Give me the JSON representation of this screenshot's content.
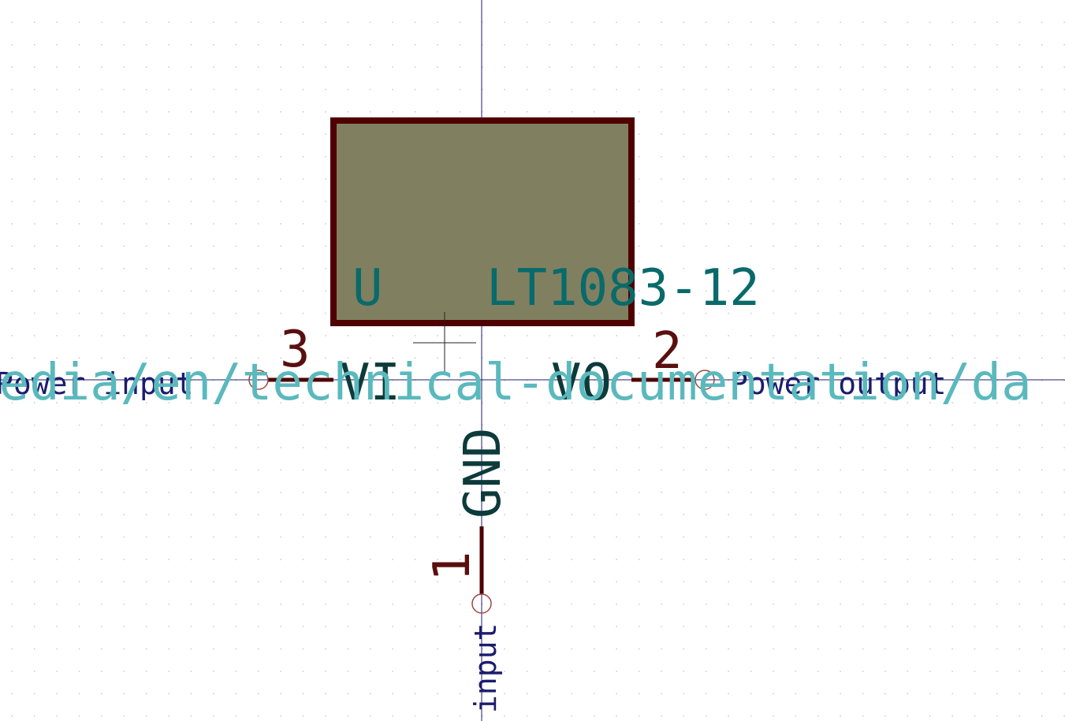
{
  "symbol": {
    "reference": "U",
    "value": "LT1083-12",
    "datasheet_fragment": "media/en/technical-documentation/da"
  },
  "pins": [
    {
      "number": "3",
      "name": "VI",
      "type": "Power input"
    },
    {
      "number": "2",
      "name": "VO",
      "type": "Power output"
    },
    {
      "number": "1",
      "name": "GND",
      "type": "Power input"
    }
  ],
  "gnd_pin_type_visible": "input",
  "colors": {
    "background": "#ffffff",
    "body_fill": "#808060",
    "body_outline": "#4f0000",
    "pin_line": "#4f0000",
    "pin_number": "#5a0f0f",
    "pin_name": "#0d3a3a",
    "field_text": "#0a6a6a",
    "datasheet_text": "#5ab9bd",
    "pin_type_text": "#1c1c6e",
    "crosshair": "#1c1c6e",
    "grid_dot": "#c8c8c8",
    "pin_end_circle": "#9a4a4a"
  }
}
